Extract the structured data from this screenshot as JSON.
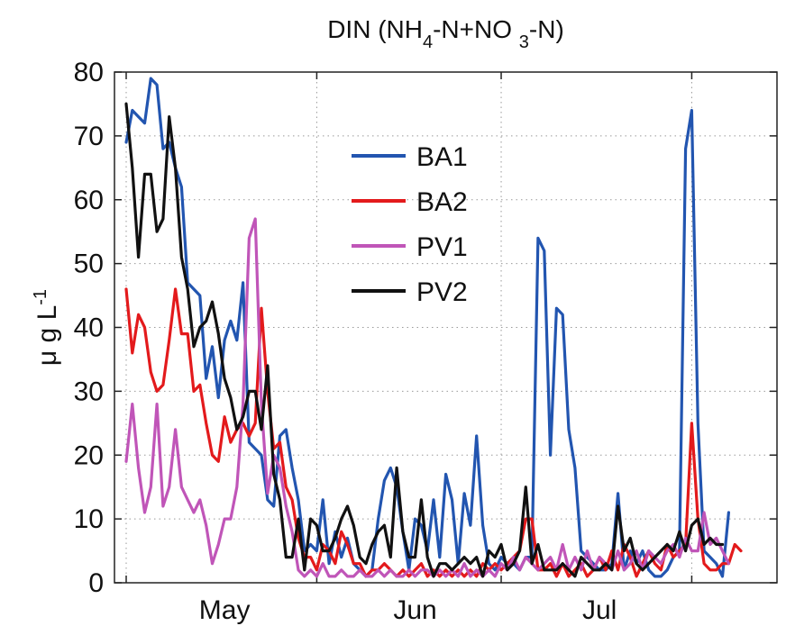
{
  "chart_data": {
    "type": "line",
    "title_parts": [
      "DIN (NH",
      "4",
      "-N+NO ",
      "3",
      "-N)"
    ],
    "ylabel_parts": [
      "μ g L",
      "-1"
    ],
    "xlabel": "",
    "ylim": [
      0,
      80
    ],
    "yticks": [
      0,
      10,
      20,
      30,
      40,
      50,
      60,
      70,
      80
    ],
    "xlim": [
      1,
      101
    ],
    "month_labels": [
      {
        "label": "May",
        "x": 17
      },
      {
        "label": "Jun",
        "x": 48
      },
      {
        "label": "Jul",
        "x": 78
      }
    ],
    "grid": true,
    "legend_position": "upper-center",
    "series": [
      {
        "name": "BA1",
        "color": "#2255b0",
        "values": [
          69,
          74,
          73,
          72,
          79,
          78,
          68,
          69,
          65,
          62,
          47,
          46,
          45,
          32,
          37,
          29,
          38,
          41,
          38,
          47,
          22,
          21,
          20,
          13,
          12,
          23,
          24,
          18,
          13,
          5,
          6,
          5,
          13,
          3,
          8,
          4,
          7,
          3,
          2,
          1,
          2,
          10,
          16,
          18,
          15,
          8,
          2,
          10,
          9,
          5,
          13,
          4,
          17,
          13,
          3,
          14,
          9,
          23,
          9,
          3,
          2,
          4,
          3,
          3,
          2,
          4,
          4,
          54,
          52,
          20,
          43,
          42,
          24,
          18,
          5,
          4,
          3,
          2,
          2,
          3,
          14,
          2,
          5,
          3,
          5,
          2,
          1,
          1,
          2,
          4,
          5,
          68,
          74,
          25,
          5,
          4,
          3,
          1,
          11
        ]
      },
      {
        "name": "BA2",
        "color": "#e31a1c",
        "values": [
          46,
          36,
          42,
          40,
          33,
          30,
          31,
          38,
          46,
          39,
          39,
          30,
          31,
          25,
          20,
          19,
          26,
          22,
          24,
          25,
          23,
          25,
          43,
          30,
          21,
          22,
          15,
          13,
          7,
          4,
          4,
          2,
          6,
          5,
          3,
          8,
          6,
          3,
          3,
          1,
          2,
          2,
          3,
          2,
          1,
          2,
          1,
          2,
          3,
          1,
          2,
          1,
          2,
          1,
          2,
          1,
          2,
          1,
          3,
          2,
          3,
          2,
          3,
          4,
          5,
          10,
          10,
          2,
          2,
          3,
          1,
          3,
          1,
          2,
          3,
          1,
          2,
          4,
          2,
          5,
          2,
          6,
          4,
          1,
          3,
          5,
          3,
          2,
          6,
          4,
          5,
          6,
          25,
          10,
          3,
          2,
          2,
          3,
          3,
          6,
          5
        ]
      },
      {
        "name": "PV1",
        "color": "#c055b8",
        "values": [
          19,
          28,
          18,
          11,
          15,
          28,
          12,
          15,
          24,
          15,
          13,
          11,
          13,
          9,
          3,
          6,
          10,
          10,
          15,
          28,
          54,
          57,
          28,
          14,
          20,
          18,
          12,
          8,
          2,
          1,
          2,
          1,
          3,
          1,
          1,
          2,
          1,
          1,
          2,
          1,
          1,
          2,
          1,
          2,
          1,
          1,
          2,
          1,
          2,
          2,
          1,
          2,
          1,
          2,
          1,
          3,
          1,
          2,
          1,
          2,
          1,
          3,
          2,
          4,
          2,
          4,
          3,
          2,
          3,
          4,
          2,
          6,
          2,
          4,
          2,
          5,
          2,
          4,
          3,
          2,
          5,
          2,
          3,
          5,
          2,
          5,
          4,
          3,
          5,
          6,
          4,
          7,
          5,
          5,
          11,
          6,
          7,
          5,
          3
        ]
      },
      {
        "name": "PV2",
        "color": "#111111",
        "values": [
          75,
          65,
          51,
          64,
          64,
          55,
          57,
          73,
          65,
          51,
          46,
          37,
          40,
          41,
          44,
          39,
          32,
          29,
          24,
          26,
          30,
          30,
          24,
          34,
          17,
          13,
          4,
          4,
          10,
          2,
          10,
          9,
          5,
          5,
          7,
          10,
          12,
          9,
          4,
          3,
          6,
          8,
          9,
          4,
          18,
          8,
          4,
          4,
          13,
          4,
          1,
          3,
          3,
          2,
          3,
          4,
          3,
          4,
          1,
          5,
          4,
          6,
          2,
          3,
          5,
          15,
          3,
          6,
          2,
          2,
          2,
          3,
          2,
          1,
          4,
          3,
          2,
          2,
          3,
          2,
          12,
          5,
          7,
          3,
          2,
          3,
          4,
          5,
          6,
          5,
          8,
          5,
          9,
          10,
          6,
          7,
          6,
          6
        ]
      }
    ]
  }
}
